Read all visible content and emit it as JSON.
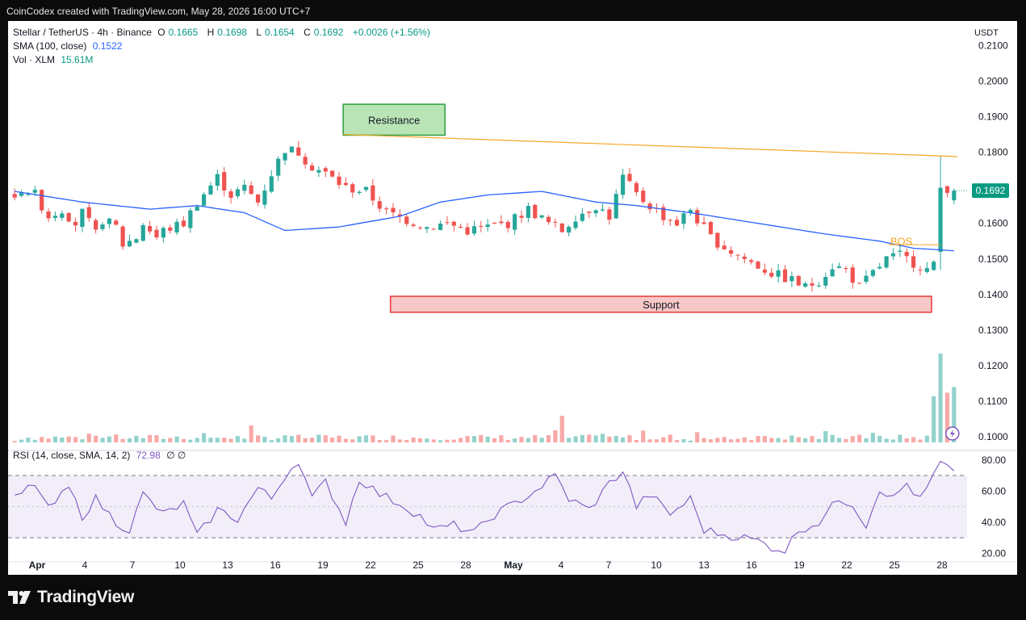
{
  "caption": "CoinCodex created with TradingView.com, May 28, 2026 16:00 UTC+7",
  "legend": {
    "symbol": "Stellar / TetherUS · 4h · Binance",
    "o_label": "O",
    "o_value": "0.1665",
    "h_label": "H",
    "h_value": "0.1698",
    "l_label": "L",
    "l_value": "0.1654",
    "c_label": "C",
    "c_value": "0.1692",
    "change": "+0.0026 (+1.56%)",
    "sma_label": "SMA (100, close)",
    "sma_value": "0.1522",
    "vol_label": "Vol · XLM",
    "vol_value": "15.61M",
    "rsi_label": "RSI (14, close, SMA, 14, 2)",
    "rsi_value": "72.98",
    "rsi_extra": "∅ ∅"
  },
  "currency": "USDT",
  "brand": "TradingView",
  "icons": {
    "logo": "tradingview-logo-icon",
    "flash": "lightning-icon"
  },
  "colors": {
    "up": "#26a69a",
    "down": "#ef5350",
    "sma": "#2962ff",
    "rsi": "#7e57c2",
    "resistance": "#f5a623",
    "bos": "#f5a623",
    "support_fill": "#f8c7c7",
    "support_border": "#e53935",
    "res_fill": "#b9e4b5",
    "res_border": "#2e9e3f",
    "last_price_bg": "#089981"
  },
  "chart_data": {
    "type": "candlestick",
    "price_axis": {
      "ticks": [
        "0.2100",
        "0.2000",
        "0.1900",
        "0.1800",
        "0.1700",
        "0.1600",
        "0.1500",
        "0.1400",
        "0.1300",
        "0.1200",
        "0.1100",
        "0.1000"
      ],
      "range": [
        0.0995,
        0.2115
      ],
      "last_price": "0.1692"
    },
    "x_axis": {
      "ticks": [
        "Apr",
        "4",
        "7",
        "10",
        "13",
        "16",
        "19",
        "22",
        "25",
        "28",
        "May",
        "4",
        "7",
        "10",
        "13",
        "16",
        "19",
        "22",
        "25",
        "28"
      ],
      "bold": [
        "Apr",
        "May"
      ],
      "start": "Apr 1",
      "end": "May 28"
    },
    "rsi_axis": {
      "ticks": [
        "80.00",
        "60.00",
        "40.00",
        "20.00"
      ],
      "range": [
        15,
        83
      ],
      "upper": 70,
      "mid": 50,
      "lower": 30
    },
    "close_path": [
      [
        0,
        0.166
      ],
      [
        1,
        0.17
      ],
      [
        3,
        0.168
      ],
      [
        5,
        0.162
      ],
      [
        7,
        0.164
      ],
      [
        9,
        0.16
      ],
      [
        10,
        0.163
      ],
      [
        12,
        0.157
      ],
      [
        13,
        0.161
      ],
      [
        15,
        0.159
      ],
      [
        16,
        0.154
      ],
      [
        18,
        0.156
      ],
      [
        19,
        0.16
      ],
      [
        21,
        0.156
      ],
      [
        22,
        0.158
      ],
      [
        25,
        0.16
      ],
      [
        27,
        0.166
      ],
      [
        30,
        0.173
      ],
      [
        32,
        0.168
      ],
      [
        34,
        0.17
      ],
      [
        36,
        0.166
      ],
      [
        38,
        0.174
      ],
      [
        40,
        0.181
      ],
      [
        42,
        0.18
      ],
      [
        44,
        0.176
      ],
      [
        46,
        0.174
      ],
      [
        49,
        0.17
      ],
      [
        52,
        0.169
      ],
      [
        55,
        0.163
      ],
      [
        58,
        0.161
      ],
      [
        61,
        0.159
      ],
      [
        64,
        0.16
      ],
      [
        67,
        0.158
      ],
      [
        70,
        0.159
      ],
      [
        73,
        0.16
      ],
      [
        76,
        0.164
      ],
      [
        79,
        0.16
      ],
      [
        81,
        0.158
      ],
      [
        83,
        0.162
      ],
      [
        86,
        0.165
      ],
      [
        88,
        0.162
      ],
      [
        90,
        0.173
      ],
      [
        92,
        0.168
      ],
      [
        94,
        0.165
      ],
      [
        96,
        0.162
      ],
      [
        98,
        0.16
      ],
      [
        100,
        0.164
      ],
      [
        101,
        0.161
      ],
      [
        103,
        0.156
      ],
      [
        106,
        0.152
      ],
      [
        109,
        0.149
      ],
      [
        112,
        0.146
      ],
      [
        115,
        0.144
      ],
      [
        117,
        0.142
      ],
      [
        119,
        0.144
      ],
      [
        121,
        0.148
      ],
      [
        123,
        0.147
      ],
      [
        125,
        0.142
      ],
      [
        127,
        0.146
      ],
      [
        129,
        0.15
      ],
      [
        131,
        0.151
      ],
      [
        133,
        0.149
      ],
      [
        135,
        0.147
      ],
      [
        136,
        0.148
      ],
      [
        137,
        0.162
      ],
      [
        138,
        0.17
      ],
      [
        139,
        0.1692
      ]
    ],
    "candles": 140,
    "highlight_candles": [
      {
        "index": 137,
        "high": 0.179,
        "low": 0.147,
        "open": 0.152,
        "close": 0.17
      }
    ],
    "sma_100": [
      [
        0,
        0.169
      ],
      [
        10,
        0.166
      ],
      [
        20,
        0.164
      ],
      [
        27,
        0.165
      ],
      [
        34,
        0.163
      ],
      [
        40,
        0.158
      ],
      [
        48,
        0.159
      ],
      [
        57,
        0.162
      ],
      [
        63,
        0.166
      ],
      [
        70,
        0.168
      ],
      [
        78,
        0.169
      ],
      [
        86,
        0.166
      ],
      [
        92,
        0.165
      ],
      [
        100,
        0.163
      ],
      [
        110,
        0.16
      ],
      [
        120,
        0.157
      ],
      [
        128,
        0.155
      ],
      [
        133,
        0.153
      ],
      [
        140,
        0.1522
      ]
    ],
    "volume_mln": [
      {
        "i": 0,
        "v": 0.4
      },
      {
        "i": 40,
        "v": 2.0
      },
      {
        "i": 81,
        "v": 7.5
      },
      {
        "i": 100,
        "v": 0.5
      },
      {
        "i": 136,
        "v": 13
      },
      {
        "i": 137,
        "v": 25
      },
      {
        "i": 138,
        "v": 14
      },
      {
        "i": 139,
        "v": 15.61
      }
    ],
    "rsi": [
      [
        0,
        55
      ],
      [
        3,
        65
      ],
      [
        5,
        48
      ],
      [
        8,
        62
      ],
      [
        10,
        44
      ],
      [
        12,
        55
      ],
      [
        15,
        40
      ],
      [
        17,
        35
      ],
      [
        19,
        58
      ],
      [
        22,
        45
      ],
      [
        25,
        52
      ],
      [
        27,
        31
      ],
      [
        30,
        48
      ],
      [
        33,
        42
      ],
      [
        36,
        62
      ],
      [
        38,
        55
      ],
      [
        40,
        70
      ],
      [
        42,
        80
      ],
      [
        44,
        55
      ],
      [
        46,
        66
      ],
      [
        49,
        40
      ],
      [
        51,
        68
      ],
      [
        54,
        58
      ],
      [
        57,
        52
      ],
      [
        60,
        44
      ],
      [
        62,
        35
      ],
      [
        65,
        38
      ],
      [
        68,
        33
      ],
      [
        71,
        45
      ],
      [
        74,
        52
      ],
      [
        77,
        60
      ],
      [
        80,
        70
      ],
      [
        82,
        55
      ],
      [
        85,
        48
      ],
      [
        88,
        65
      ],
      [
        90,
        73
      ],
      [
        92,
        50
      ],
      [
        94,
        58
      ],
      [
        97,
        45
      ],
      [
        100,
        55
      ],
      [
        102,
        35
      ],
      [
        105,
        32
      ],
      [
        108,
        30
      ],
      [
        110,
        28
      ],
      [
        112,
        24
      ],
      [
        114,
        22
      ],
      [
        116,
        35
      ],
      [
        119,
        40
      ],
      [
        122,
        55
      ],
      [
        124,
        52
      ],
      [
        126,
        38
      ],
      [
        128,
        62
      ],
      [
        130,
        55
      ],
      [
        132,
        65
      ],
      [
        134,
        54
      ],
      [
        136,
        70
      ],
      [
        137,
        78
      ],
      [
        138,
        75
      ],
      [
        139,
        72.98
      ]
    ],
    "annotations": [
      {
        "type": "zone",
        "label": "Resistance",
        "top": 0.1935,
        "bottom": 0.1848,
        "from": 51,
        "to": 62
      },
      {
        "type": "line",
        "label": "",
        "from": [
          51,
          0.185
        ],
        "to": [
          139,
          0.1788
        ]
      },
      {
        "type": "text",
        "label": "BOS",
        "at": [
          131,
          0.156
        ]
      },
      {
        "type": "zone",
        "label": "Support",
        "top": 0.1395,
        "bottom": 0.135,
        "from": 58,
        "to": 134
      }
    ]
  }
}
